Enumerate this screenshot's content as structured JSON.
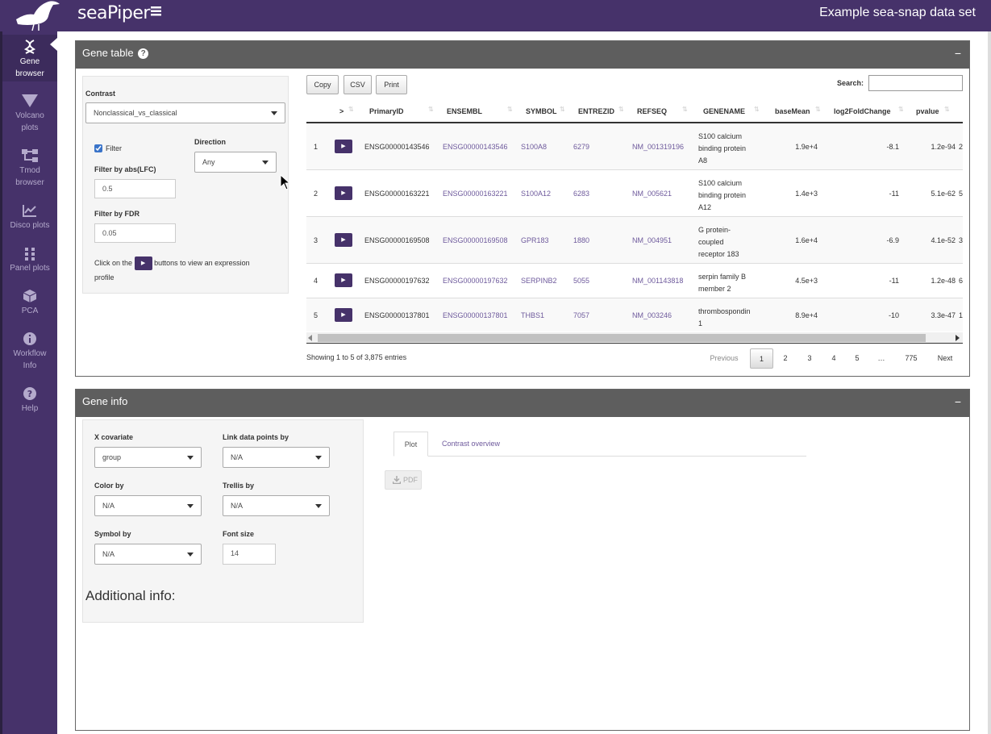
{
  "header": {
    "logo_text": "seaPiper",
    "title": "Example sea-snap data set"
  },
  "sidebar": {
    "items": [
      {
        "line1": "Gene",
        "line2": "browser",
        "icon": "dna-icon"
      },
      {
        "line1": "Volcano",
        "line2": "plots",
        "icon": "volcano-icon"
      },
      {
        "line1": "Tmod",
        "line2": "browser",
        "icon": "sitemap-icon"
      },
      {
        "line1": "Disco plots",
        "line2": "",
        "icon": "chart-line-icon"
      },
      {
        "line1": "Panel plots",
        "line2": "",
        "icon": "grid-icon"
      },
      {
        "line1": "PCA",
        "line2": "",
        "icon": "cube-icon"
      },
      {
        "line1": "Workflow",
        "line2": "Info",
        "icon": "info-icon"
      },
      {
        "line1": "Help",
        "line2": "",
        "icon": "question-icon"
      }
    ]
  },
  "gene_table": {
    "title": "Gene table",
    "collapse": "−",
    "contrast_label": "Contrast",
    "contrast_value": "Nonclassical_vs_classical",
    "filter_label": "Filter",
    "filter_checked": true,
    "direction_label": "Direction",
    "direction_value": "Any",
    "lfc_label": "Filter by abs(LFC)",
    "lfc_value": "0.5",
    "fdr_label": "Filter by FDR",
    "fdr_value": "0.05",
    "hint_before": "Click on the",
    "hint_after": "buttons to view an expression",
    "hint_line2": "profile",
    "buttons": {
      "copy": "Copy",
      "csv": "CSV",
      "print": "Print"
    },
    "search_label": "Search:",
    "search_value": "",
    "columns": [
      "",
      ">",
      "PrimaryID",
      "ENSEMBL",
      "SYMBOL",
      "ENTREZID",
      "REFSEQ",
      "GENENAME",
      "baseMean",
      "log2FoldChange",
      "pvalue"
    ],
    "rows": [
      {
        "n": "1",
        "primary": "ENSG00000143546",
        "ensembl": "ENSG00000143546",
        "symbol": "S100A8",
        "entrez": "6279",
        "refseq": "NM_001319196",
        "genename": [
          "S100 calcium",
          "binding protein",
          "A8"
        ],
        "basemean": "1.9e+4",
        "lfc": "-8.1",
        "pvalue": "1.2e-94",
        "extra": "2"
      },
      {
        "n": "2",
        "primary": "ENSG00000163221",
        "ensembl": "ENSG00000163221",
        "symbol": "S100A12",
        "entrez": "6283",
        "refseq": "NM_005621",
        "genename": [
          "S100 calcium",
          "binding protein",
          "A12"
        ],
        "basemean": "1.4e+3",
        "lfc": "-11",
        "pvalue": "5.1e-62",
        "extra": "5"
      },
      {
        "n": "3",
        "primary": "ENSG00000169508",
        "ensembl": "ENSG00000169508",
        "symbol": "GPR183",
        "entrez": "1880",
        "refseq": "NM_004951",
        "genename": [
          "G protein-",
          "coupled",
          "receptor 183"
        ],
        "basemean": "1.6e+4",
        "lfc": "-6.9",
        "pvalue": "4.1e-52",
        "extra": "3"
      },
      {
        "n": "4",
        "primary": "ENSG00000197632",
        "ensembl": "ENSG00000197632",
        "symbol": "SERPINB2",
        "entrez": "5055",
        "refseq": "NM_001143818",
        "genename": [
          "serpin family B",
          "member 2"
        ],
        "basemean": "4.5e+3",
        "lfc": "-11",
        "pvalue": "1.2e-48",
        "extra": "6"
      },
      {
        "n": "5",
        "primary": "ENSG00000137801",
        "ensembl": "ENSG00000137801",
        "symbol": "THBS1",
        "entrez": "7057",
        "refseq": "NM_003246",
        "genename": [
          "thrombospondin",
          "1"
        ],
        "basemean": "8.9e+4",
        "lfc": "-10",
        "pvalue": "3.3e-47",
        "extra": "1"
      }
    ],
    "info": "Showing 1 to 5 of 3,875 entries",
    "pagination": {
      "prev": "Previous",
      "pages": [
        "1",
        "2",
        "3",
        "4",
        "5",
        "…",
        "775"
      ],
      "next": "Next",
      "current": "1"
    }
  },
  "gene_info": {
    "title": "Gene info",
    "collapse": "−",
    "x_cov_label": "X covariate",
    "x_cov_value": "group",
    "link_label": "Link data points by",
    "link_value": "N/A",
    "color_label": "Color by",
    "color_value": "N/A",
    "trellis_label": "Trellis by",
    "trellis_value": "N/A",
    "symbol_label": "Symbol by",
    "symbol_value": "N/A",
    "font_label": "Font size",
    "font_value": "14",
    "additional": "Additional info:",
    "tabs": [
      "Plot",
      "Contrast overview"
    ],
    "pdf_label": "PDF"
  },
  "colors": {
    "brand": "#46326a",
    "box_header": "#5e5e5e",
    "link": "#6e5a9c"
  }
}
